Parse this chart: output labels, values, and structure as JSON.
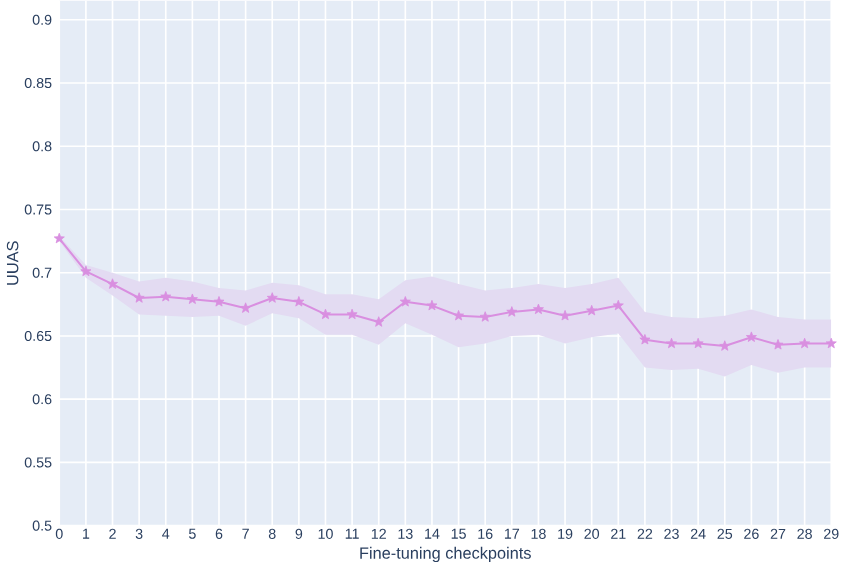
{
  "chart_data": {
    "type": "line",
    "xlabel": "Fine-tuning checkpoints",
    "ylabel": "UUAS",
    "x": [
      0,
      1,
      2,
      3,
      4,
      5,
      6,
      7,
      8,
      9,
      10,
      11,
      12,
      13,
      14,
      15,
      16,
      17,
      18,
      19,
      20,
      21,
      22,
      23,
      24,
      25,
      26,
      27,
      28,
      29
    ],
    "series": [
      {
        "color": "#d98fe0",
        "values": [
          0.727,
          0.701,
          0.691,
          0.68,
          0.681,
          0.679,
          0.677,
          0.672,
          0.68,
          0.677,
          0.667,
          0.667,
          0.661,
          0.677,
          0.674,
          0.666,
          0.665,
          0.669,
          0.671,
          0.666,
          0.67,
          0.674,
          0.647,
          0.644,
          0.644,
          0.642,
          0.649,
          0.643,
          0.644,
          0.644
        ],
        "upper": [
          0.729,
          0.706,
          0.7,
          0.693,
          0.696,
          0.693,
          0.688,
          0.686,
          0.692,
          0.69,
          0.683,
          0.683,
          0.679,
          0.694,
          0.697,
          0.691,
          0.686,
          0.688,
          0.691,
          0.688,
          0.691,
          0.696,
          0.669,
          0.665,
          0.664,
          0.666,
          0.671,
          0.665,
          0.663,
          0.663
        ],
        "lower": [
          0.725,
          0.696,
          0.682,
          0.667,
          0.666,
          0.665,
          0.666,
          0.658,
          0.668,
          0.664,
          0.651,
          0.651,
          0.643,
          0.66,
          0.651,
          0.641,
          0.644,
          0.65,
          0.651,
          0.644,
          0.649,
          0.652,
          0.625,
          0.623,
          0.624,
          0.618,
          0.627,
          0.621,
          0.625,
          0.625
        ]
      }
    ],
    "xlim": [
      0,
      29
    ],
    "ylim": [
      0.5,
      0.915
    ],
    "xticks": [
      0,
      1,
      2,
      3,
      4,
      5,
      6,
      7,
      8,
      9,
      10,
      11,
      12,
      13,
      14,
      15,
      16,
      17,
      18,
      19,
      20,
      21,
      22,
      23,
      24,
      25,
      26,
      27,
      28,
      29
    ],
    "yticks": [
      0.5,
      0.55,
      0.6,
      0.65,
      0.7,
      0.75,
      0.8,
      0.85,
      0.9
    ],
    "grid": true,
    "marker": "star",
    "line_style": "solid"
  }
}
